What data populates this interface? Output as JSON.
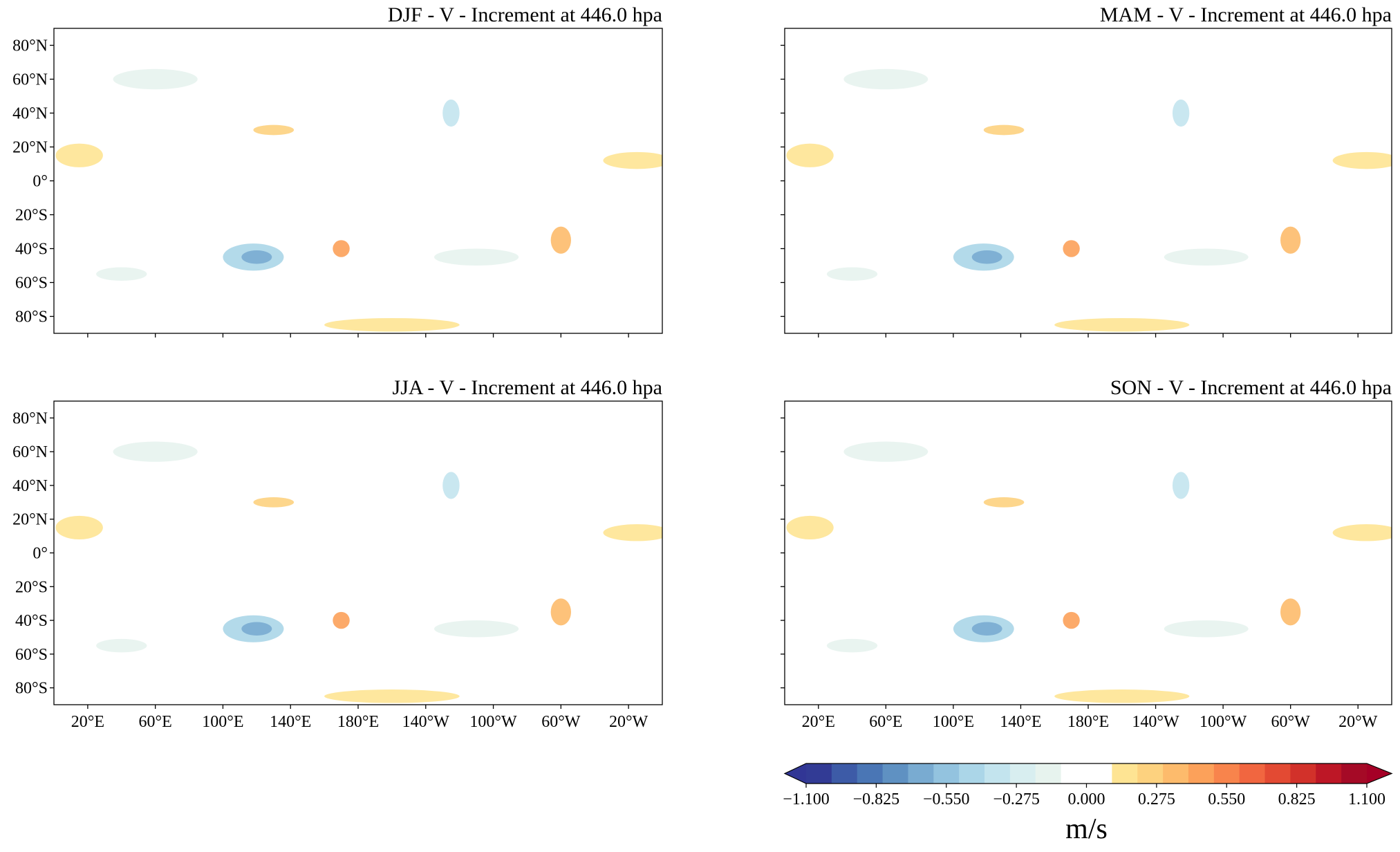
{
  "panels": [
    {
      "title": "DJF - V - Increment at 446.0 hpa"
    },
    {
      "title": "MAM - V - Increment at 446.0 hpa"
    },
    {
      "title": "JJA - V - Increment at 446.0 hpa"
    },
    {
      "title": "SON - V - Increment at 446.0 hpa"
    }
  ],
  "lat_ticks": [
    {
      "value": 80,
      "label": "80°N"
    },
    {
      "value": 60,
      "label": "60°N"
    },
    {
      "value": 40,
      "label": "40°N"
    },
    {
      "value": 20,
      "label": "20°N"
    },
    {
      "value": 0,
      "label": "0°"
    },
    {
      "value": -20,
      "label": "20°S"
    },
    {
      "value": -40,
      "label": "40°S"
    },
    {
      "value": -60,
      "label": "60°S"
    },
    {
      "value": -80,
      "label": "80°S"
    }
  ],
  "lat_lim": [
    90,
    -90
  ],
  "lon_ticks": [
    {
      "value": 20,
      "label": "20°E"
    },
    {
      "value": 60,
      "label": "60°E"
    },
    {
      "value": 100,
      "label": "100°E"
    },
    {
      "value": 140,
      "label": "140°E"
    },
    {
      "value": 180,
      "label": "180°E"
    },
    {
      "value": 220,
      "label": "140°W"
    },
    {
      "value": 260,
      "label": "100°W"
    },
    {
      "value": 300,
      "label": "60°W"
    },
    {
      "value": 340,
      "label": "20°W"
    }
  ],
  "lon_lim": [
    0,
    360
  ],
  "colorbar": {
    "clim": [
      -1.1,
      1.1
    ],
    "ticks": [
      {
        "value": -1.1,
        "label": "−1.100"
      },
      {
        "value": -0.825,
        "label": "−0.825"
      },
      {
        "value": -0.55,
        "label": "−0.550"
      },
      {
        "value": -0.275,
        "label": "−0.275"
      },
      {
        "value": 0,
        "label": "0.000"
      },
      {
        "value": 0.275,
        "label": "0.275"
      },
      {
        "value": 0.55,
        "label": "0.550"
      },
      {
        "value": 0.825,
        "label": "0.825"
      },
      {
        "value": 1.1,
        "label": "1.100"
      }
    ],
    "colors": [
      "#323b95",
      "#3d5ba7",
      "#4a76b5",
      "#5f91c2",
      "#79abd1",
      "#93c3df",
      "#abd6e8",
      "#c3e4ee",
      "#d8eef0",
      "#e7f3ee",
      "#ffffff",
      "#ffffff",
      "#fee493",
      "#fdd27f",
      "#fdbb6c",
      "#fca15a",
      "#f8844c",
      "#f16640",
      "#e34a33",
      "#d2312a",
      "#bd1726",
      "#a50a26"
    ],
    "under_color": "#313695",
    "over_color": "#a50026",
    "label": "m/s"
  }
}
